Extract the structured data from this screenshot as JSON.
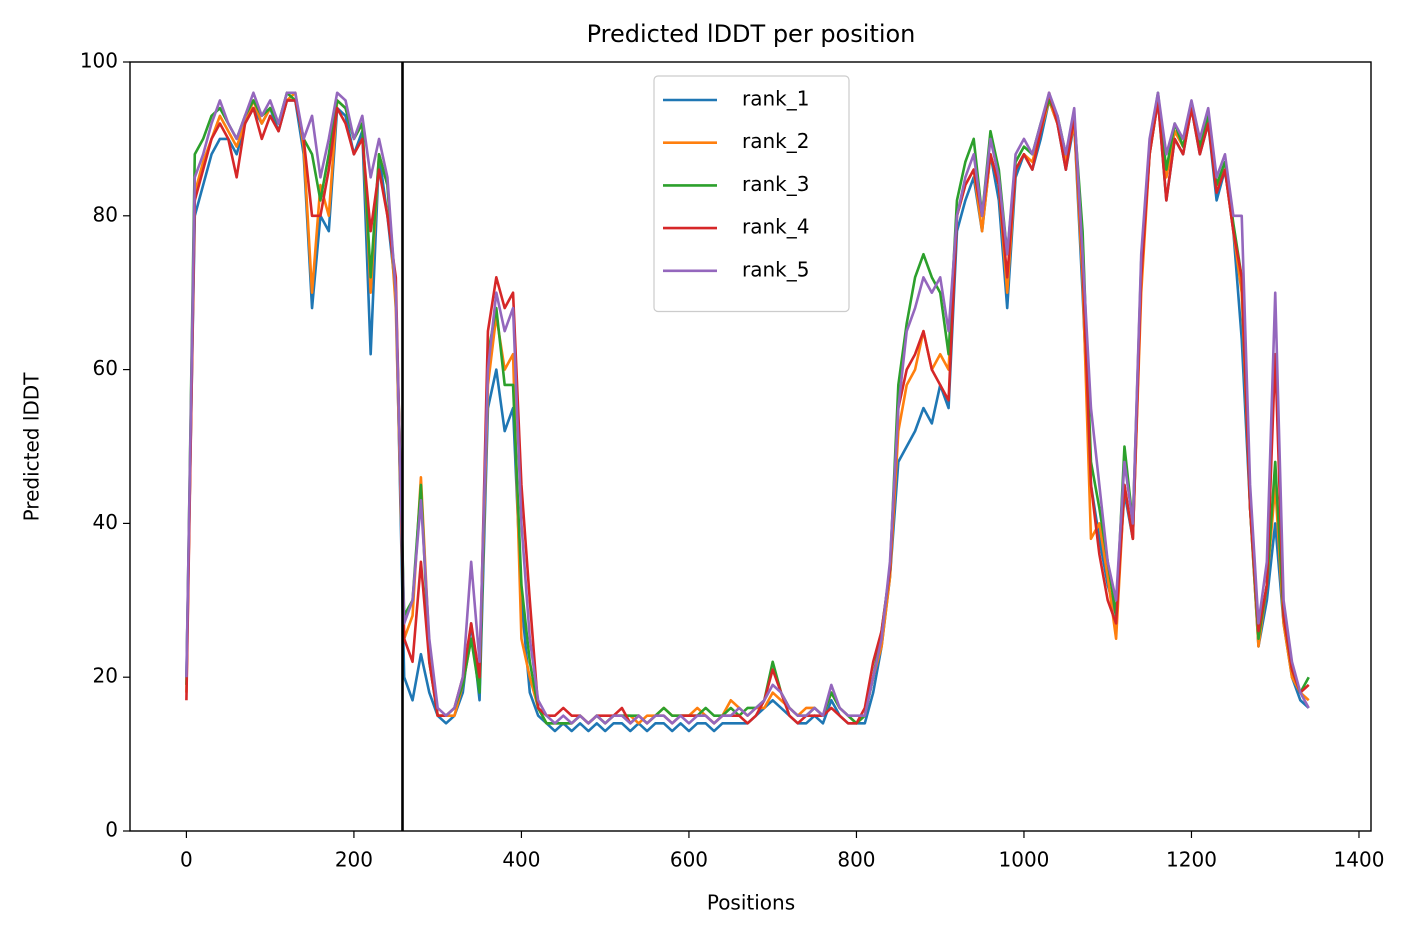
{
  "chart_data": {
    "type": "line",
    "title": "Predicted lDDT per position",
    "xlabel": "Positions",
    "ylabel": "Predicted lDDT",
    "xlim": [
      -67.35,
      1414.35
    ],
    "ylim": [
      0,
      100
    ],
    "xticks": [
      0,
      200,
      400,
      600,
      800,
      1000,
      1200,
      1400
    ],
    "yticks": [
      0,
      20,
      40,
      60,
      80,
      100
    ],
    "grid": false,
    "legend": "upper center",
    "vline": 258,
    "vline_color": "#000000",
    "x": [
      0,
      10,
      20,
      30,
      40,
      50,
      60,
      70,
      80,
      90,
      100,
      110,
      120,
      130,
      140,
      150,
      160,
      170,
      180,
      190,
      200,
      210,
      220,
      230,
      240,
      250,
      260,
      270,
      280,
      290,
      300,
      310,
      320,
      330,
      340,
      350,
      360,
      370,
      380,
      390,
      400,
      410,
      420,
      430,
      440,
      450,
      460,
      470,
      480,
      490,
      500,
      510,
      520,
      530,
      540,
      550,
      560,
      570,
      580,
      590,
      600,
      610,
      620,
      630,
      640,
      650,
      660,
      670,
      680,
      690,
      700,
      710,
      720,
      730,
      740,
      750,
      760,
      770,
      780,
      790,
      800,
      810,
      820,
      830,
      840,
      850,
      860,
      870,
      880,
      890,
      900,
      910,
      920,
      930,
      940,
      950,
      960,
      970,
      980,
      990,
      1000,
      1010,
      1020,
      1030,
      1040,
      1050,
      1060,
      1070,
      1080,
      1090,
      1100,
      1110,
      1120,
      1130,
      1140,
      1150,
      1160,
      1170,
      1180,
      1190,
      1200,
      1210,
      1220,
      1230,
      1240,
      1250,
      1260,
      1270,
      1280,
      1290,
      1300,
      1310,
      1320,
      1330,
      1340
    ],
    "series": [
      {
        "name": "rank_1",
        "color": "#1f77b4",
        "values": [
          20,
          80,
          84,
          88,
          90,
          90,
          88,
          92,
          94,
          92,
          94,
          91,
          95,
          95,
          88,
          68,
          80,
          78,
          94,
          93,
          88,
          91,
          62,
          88,
          80,
          70,
          20,
          17,
          23,
          18,
          15,
          14,
          15,
          18,
          27,
          17,
          55,
          60,
          52,
          55,
          30,
          18,
          15,
          14,
          13,
          14,
          13,
          14,
          13,
          14,
          13,
          14,
          14,
          13,
          14,
          13,
          14,
          14,
          13,
          14,
          13,
          14,
          14,
          13,
          14,
          14,
          14,
          14,
          15,
          16,
          17,
          16,
          15,
          14,
          14,
          15,
          14,
          17,
          15,
          14,
          14,
          14,
          18,
          24,
          33,
          48,
          50,
          52,
          55,
          53,
          58,
          55,
          78,
          82,
          85,
          78,
          88,
          82,
          68,
          85,
          88,
          86,
          90,
          95,
          92,
          86,
          92,
          70,
          45,
          38,
          32,
          28,
          44,
          38,
          72,
          88,
          95,
          82,
          90,
          88,
          94,
          88,
          92,
          82,
          86,
          78,
          64,
          42,
          24,
          30,
          40,
          27,
          20,
          17,
          16
        ]
      },
      {
        "name": "rank_2",
        "color": "#ff7f0e",
        "values": [
          18,
          83,
          87,
          90,
          93,
          91,
          89,
          92,
          95,
          92,
          94,
          92,
          95,
          96,
          89,
          70,
          84,
          80,
          95,
          94,
          90,
          92,
          70,
          88,
          84,
          68,
          25,
          28,
          46,
          24,
          15,
          15,
          15,
          19,
          25,
          19,
          58,
          67,
          60,
          62,
          25,
          20,
          16,
          14,
          14,
          14,
          14,
          15,
          14,
          15,
          14,
          15,
          15,
          15,
          14,
          15,
          15,
          16,
          15,
          15,
          15,
          16,
          15,
          14,
          15,
          17,
          16,
          15,
          16,
          16,
          18,
          17,
          16,
          15,
          16,
          16,
          15,
          18,
          16,
          15,
          14,
          15,
          20,
          24,
          33,
          52,
          58,
          60,
          65,
          60,
          62,
          60,
          80,
          84,
          86,
          78,
          88,
          84,
          70,
          86,
          88,
          87,
          91,
          95,
          92,
          87,
          92,
          72,
          38,
          40,
          33,
          25,
          45,
          38,
          70,
          88,
          95,
          85,
          91,
          89,
          94,
          89,
          93,
          84,
          86,
          78,
          70,
          42,
          24,
          32,
          45,
          27,
          20,
          18,
          17
        ]
      },
      {
        "name": "rank_3",
        "color": "#2ca02c",
        "values": [
          19,
          88,
          90,
          93,
          94,
          92,
          90,
          93,
          95,
          93,
          94,
          92,
          96,
          95,
          90,
          88,
          82,
          88,
          95,
          94,
          90,
          92,
          72,
          88,
          84,
          70,
          28,
          30,
          45,
          22,
          15,
          15,
          16,
          19,
          25,
          18,
          62,
          68,
          58,
          58,
          32,
          22,
          16,
          14,
          14,
          14,
          14,
          15,
          14,
          15,
          14,
          15,
          15,
          15,
          15,
          14,
          15,
          16,
          15,
          15,
          15,
          15,
          16,
          15,
          15,
          16,
          15,
          16,
          16,
          17,
          22,
          18,
          16,
          15,
          15,
          16,
          15,
          18,
          16,
          15,
          14,
          15,
          20,
          26,
          34,
          58,
          66,
          72,
          75,
          72,
          70,
          62,
          82,
          87,
          90,
          80,
          91,
          86,
          75,
          87,
          89,
          88,
          92,
          95,
          93,
          88,
          93,
          78,
          48,
          42,
          35,
          28,
          50,
          40,
          74,
          89,
          96,
          86,
          92,
          89,
          94,
          89,
          93,
          84,
          87,
          79,
          72,
          42,
          25,
          32,
          48,
          28,
          21,
          18,
          20
        ]
      },
      {
        "name": "rank_4",
        "color": "#d62728",
        "values": [
          17,
          82,
          86,
          90,
          92,
          90,
          85,
          92,
          94,
          90,
          93,
          91,
          95,
          95,
          90,
          80,
          80,
          86,
          94,
          92,
          88,
          90,
          78,
          86,
          80,
          72,
          25,
          22,
          35,
          22,
          15,
          15,
          16,
          20,
          27,
          20,
          65,
          72,
          68,
          70,
          45,
          30,
          16,
          15,
          15,
          16,
          15,
          15,
          14,
          15,
          15,
          15,
          16,
          14,
          15,
          14,
          15,
          15,
          14,
          15,
          15,
          15,
          15,
          14,
          15,
          15,
          15,
          14,
          15,
          17,
          21,
          18,
          15,
          14,
          15,
          15,
          15,
          16,
          15,
          14,
          14,
          16,
          22,
          26,
          34,
          55,
          60,
          62,
          65,
          60,
          58,
          56,
          80,
          84,
          86,
          80,
          88,
          84,
          72,
          86,
          88,
          86,
          91,
          96,
          92,
          86,
          93,
          74,
          45,
          36,
          30,
          27,
          45,
          38,
          72,
          88,
          95,
          82,
          90,
          88,
          94,
          88,
          92,
          83,
          86,
          78,
          72,
          42,
          26,
          32,
          62,
          28,
          21,
          18,
          19
        ]
      },
      {
        "name": "rank_5",
        "color": "#9467bd",
        "values": [
          20,
          85,
          88,
          92,
          95,
          92,
          90,
          93,
          96,
          93,
          95,
          92,
          96,
          96,
          90,
          93,
          85,
          90,
          96,
          95,
          90,
          93,
          85,
          90,
          85,
          70,
          27,
          30,
          43,
          25,
          16,
          15,
          16,
          20,
          35,
          22,
          60,
          70,
          65,
          68,
          40,
          25,
          17,
          15,
          14,
          15,
          14,
          15,
          14,
          15,
          14,
          15,
          15,
          14,
          15,
          14,
          15,
          15,
          14,
          15,
          14,
          15,
          15,
          14,
          15,
          15,
          16,
          15,
          16,
          17,
          19,
          18,
          16,
          15,
          15,
          16,
          15,
          19,
          16,
          15,
          15,
          15,
          20,
          25,
          35,
          55,
          65,
          68,
          72,
          70,
          72,
          65,
          80,
          85,
          88,
          80,
          90,
          85,
          75,
          88,
          90,
          88,
          92,
          96,
          93,
          88,
          94,
          75,
          55,
          45,
          35,
          30,
          48,
          40,
          75,
          90,
          96,
          88,
          92,
          90,
          95,
          90,
          94,
          85,
          88,
          80,
          80,
          45,
          27,
          35,
          70,
          30,
          22,
          18,
          16
        ]
      }
    ]
  }
}
